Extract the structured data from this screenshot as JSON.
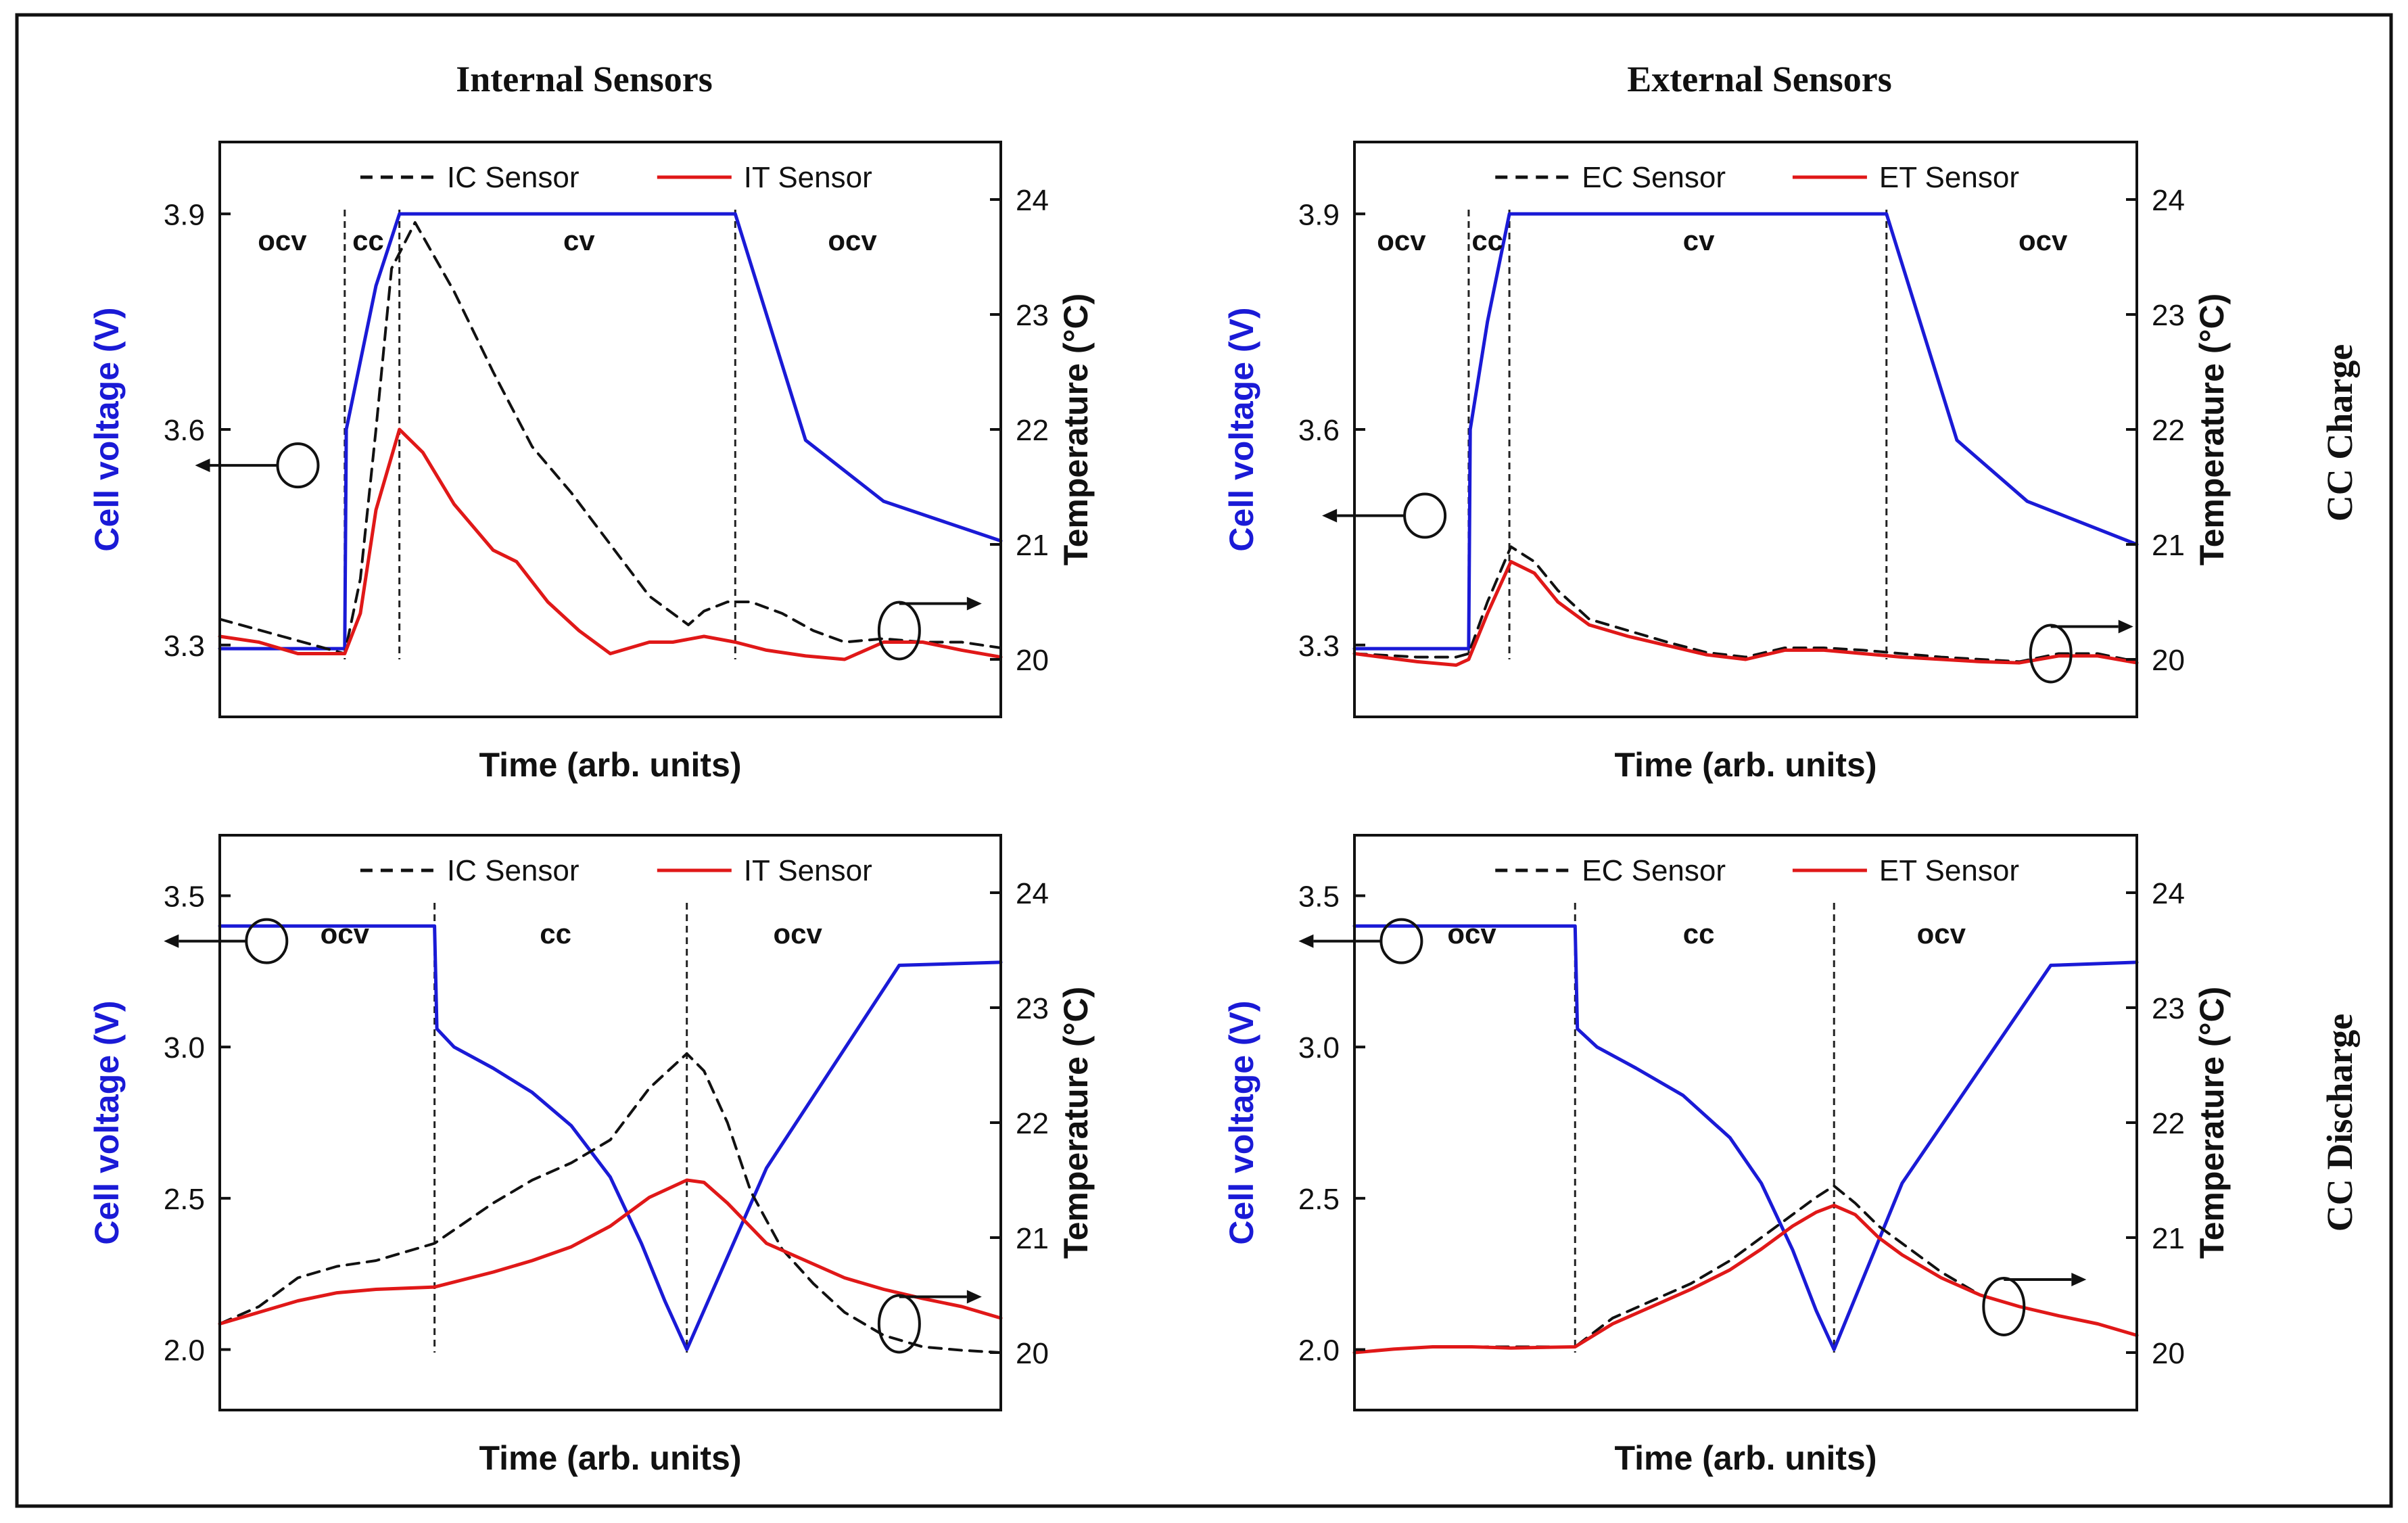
{
  "headings": {
    "left_column": "Internal Sensors",
    "right_column": "External Sensors",
    "top_row": "CC Charge",
    "bottom_row": "CC Discharge"
  },
  "colors": {
    "voltage": "#1a1ad6",
    "it_et": "#e01818",
    "ic_ec": "#111111",
    "ylabel_left": "#1a1ad6",
    "frame": "#111111"
  },
  "chart_data": [
    {
      "type": "line",
      "panel": "charge-internal",
      "xlabel": "Time (arb. units)",
      "ylabel": "Cell voltage (V)",
      "y2label": "Temperature (°C)",
      "x_range": [
        0,
        100
      ],
      "ylim": [
        3.2,
        4.0
      ],
      "y_ticks": [
        3.3,
        3.6,
        3.9
      ],
      "y_tick_labels": [
        "3.3",
        "3.6",
        "3.9"
      ],
      "y2lim": [
        19.5,
        24.5
      ],
      "y2_ticks": [
        20,
        21,
        22,
        23,
        24
      ],
      "y2_tick_labels": [
        "20",
        "21",
        "22",
        "23",
        "24"
      ],
      "legend": [
        {
          "label": "IC Sensor",
          "style": "dashed",
          "color": "#111111"
        },
        {
          "label": "IT Sensor",
          "style": "solid",
          "color": "#e01818"
        }
      ],
      "phases": [
        {
          "label": "ocv",
          "x": 8
        },
        {
          "label": "cc",
          "x": 19
        },
        {
          "label": "cv",
          "x": 46
        },
        {
          "label": "ocv",
          "x": 81
        }
      ],
      "phase_lines": [
        16,
        23,
        66
      ],
      "series": [
        {
          "name": "Cell voltage",
          "axis": "left",
          "color": "#1a1ad6",
          "dash": false,
          "x": [
            0,
            16,
            16.2,
            20,
            23,
            66,
            75,
            85,
            100
          ],
          "y": [
            3.295,
            3.295,
            3.6,
            3.8,
            3.9,
            3.9,
            3.585,
            3.5,
            3.445
          ]
        },
        {
          "name": "IC Sensor",
          "axis": "right",
          "color": "#111111",
          "dash": true,
          "x": [
            0,
            8,
            16,
            18,
            20,
            22,
            25,
            30,
            35,
            40,
            45,
            50,
            55,
            60,
            62,
            65,
            68,
            72,
            76,
            80,
            85,
            90,
            95,
            100
          ],
          "y": [
            20.35,
            20.2,
            20.05,
            20.7,
            22.0,
            23.4,
            23.8,
            23.2,
            22.5,
            21.85,
            21.45,
            21.0,
            20.55,
            20.3,
            20.42,
            20.5,
            20.5,
            20.4,
            20.25,
            20.15,
            20.18,
            20.15,
            20.15,
            20.1
          ]
        },
        {
          "name": "IT Sensor",
          "axis": "right",
          "color": "#e01818",
          "dash": false,
          "x": [
            0,
            5,
            10,
            16,
            18,
            20,
            23,
            26,
            30,
            35,
            38,
            42,
            46,
            50,
            55,
            58,
            62,
            66,
            70,
            75,
            80,
            85,
            90,
            95,
            100
          ],
          "y": [
            20.2,
            20.15,
            20.05,
            20.05,
            20.4,
            21.3,
            22.0,
            21.8,
            21.35,
            20.95,
            20.85,
            20.5,
            20.25,
            20.05,
            20.15,
            20.15,
            20.2,
            20.15,
            20.08,
            20.03,
            20.0,
            20.15,
            20.15,
            20.08,
            20.02
          ]
        }
      ]
    },
    {
      "type": "line",
      "panel": "charge-external",
      "xlabel": "Time (arb. units)",
      "ylabel": "Cell voltage (V)",
      "y2label": "Temperature (°C)",
      "x_range": [
        0,
        100
      ],
      "ylim": [
        3.2,
        4.0
      ],
      "y_ticks": [
        3.3,
        3.6,
        3.9
      ],
      "y_tick_labels": [
        "3.3",
        "3.6",
        "3.9"
      ],
      "y2lim": [
        19.5,
        24.5
      ],
      "y2_ticks": [
        20,
        21,
        22,
        23,
        24
      ],
      "y2_tick_labels": [
        "20",
        "21",
        "22",
        "23",
        "24"
      ],
      "legend": [
        {
          "label": "EC Sensor",
          "style": "dashed",
          "color": "#111111"
        },
        {
          "label": "ET Sensor",
          "style": "solid",
          "color": "#e01818"
        }
      ],
      "phases": [
        {
          "label": "ocv",
          "x": 6
        },
        {
          "label": "cc",
          "x": 17
        },
        {
          "label": "cv",
          "x": 44
        },
        {
          "label": "ocv",
          "x": 88
        }
      ],
      "phase_lines": [
        14.6,
        19.8,
        68
      ],
      "series": [
        {
          "name": "Cell voltage",
          "axis": "left",
          "color": "#1a1ad6",
          "dash": false,
          "x": [
            0,
            14.6,
            14.8,
            17,
            19.8,
            68,
            77,
            86,
            100
          ],
          "y": [
            3.295,
            3.295,
            3.6,
            3.75,
            3.9,
            3.9,
            3.585,
            3.5,
            3.44
          ]
        },
        {
          "name": "EC Sensor",
          "axis": "right",
          "color": "#111111",
          "dash": true,
          "x": [
            0,
            8,
            13,
            14.6,
            17,
            20,
            23,
            26,
            30,
            35,
            40,
            45,
            50,
            55,
            60,
            65,
            70,
            75,
            80,
            85,
            90,
            95,
            100
          ],
          "y": [
            20.05,
            20.02,
            20.02,
            20.05,
            20.5,
            20.98,
            20.85,
            20.6,
            20.35,
            20.25,
            20.15,
            20.06,
            20.02,
            20.1,
            20.1,
            20.08,
            20.05,
            20.02,
            20.0,
            19.98,
            20.05,
            20.05,
            19.98
          ]
        },
        {
          "name": "ET Sensor",
          "axis": "right",
          "color": "#e01818",
          "dash": false,
          "x": [
            0,
            8,
            13,
            14.6,
            17,
            20,
            23,
            26,
            30,
            35,
            40,
            45,
            50,
            55,
            60,
            65,
            70,
            75,
            80,
            85,
            90,
            95,
            100
          ],
          "y": [
            20.05,
            19.98,
            19.95,
            20.0,
            20.4,
            20.85,
            20.75,
            20.5,
            20.3,
            20.2,
            20.12,
            20.04,
            20.0,
            20.08,
            20.08,
            20.05,
            20.02,
            20.0,
            19.98,
            19.97,
            20.03,
            20.03,
            19.97
          ]
        }
      ]
    },
    {
      "type": "line",
      "panel": "discharge-internal",
      "xlabel": "Time (arb. units)",
      "ylabel": "Cell voltage (V)",
      "y2label": "Temperature (°C)",
      "x_range": [
        0,
        100
      ],
      "ylim": [
        1.8,
        3.7
      ],
      "y_ticks": [
        2.0,
        2.5,
        3.0,
        3.5
      ],
      "y_tick_labels": [
        "2.0",
        "2.5",
        "3.0",
        "3.5"
      ],
      "y2lim": [
        19.5,
        24.5
      ],
      "y2_ticks": [
        20,
        21,
        22,
        23,
        24
      ],
      "y2_tick_labels": [
        "20",
        "21",
        "22",
        "23",
        "24"
      ],
      "legend": [
        {
          "label": "IC Sensor",
          "style": "dashed",
          "color": "#111111"
        },
        {
          "label": "IT Sensor",
          "style": "solid",
          "color": "#e01818"
        }
      ],
      "phases": [
        {
          "label": "ocv",
          "x": 16
        },
        {
          "label": "cc",
          "x": 43
        },
        {
          "label": "ocv",
          "x": 74
        }
      ],
      "phase_lines": [
        27.5,
        59.8
      ],
      "series": [
        {
          "name": "Cell voltage",
          "axis": "left",
          "color": "#1a1ad6",
          "dash": false,
          "x": [
            0,
            27.5,
            27.8,
            30,
            35,
            40,
            45,
            50,
            54,
            57,
            59.8,
            70,
            87,
            100
          ],
          "y": [
            3.4,
            3.4,
            3.06,
            3.0,
            2.93,
            2.85,
            2.74,
            2.57,
            2.35,
            2.16,
            2.0,
            2.6,
            3.27,
            3.28
          ]
        },
        {
          "name": "IC Sensor",
          "axis": "right",
          "color": "#111111",
          "dash": true,
          "x": [
            0,
            5,
            10,
            15,
            20,
            27.5,
            35,
            40,
            45,
            50,
            55,
            59.8,
            62,
            65,
            68,
            72,
            76,
            80,
            85,
            90,
            95,
            100
          ],
          "y": [
            20.25,
            20.4,
            20.65,
            20.75,
            20.8,
            20.95,
            21.3,
            21.5,
            21.65,
            21.85,
            22.3,
            22.6,
            22.45,
            22.0,
            21.4,
            20.9,
            20.6,
            20.35,
            20.15,
            20.05,
            20.02,
            20.0
          ]
        },
        {
          "name": "IT Sensor",
          "axis": "right",
          "color": "#e01818",
          "dash": false,
          "x": [
            0,
            5,
            10,
            15,
            20,
            27.5,
            35,
            40,
            45,
            50,
            55,
            59.8,
            62,
            65,
            70,
            75,
            80,
            85,
            90,
            95,
            100
          ],
          "y": [
            20.25,
            20.35,
            20.45,
            20.52,
            20.55,
            20.57,
            20.7,
            20.8,
            20.92,
            21.1,
            21.35,
            21.5,
            21.48,
            21.3,
            20.95,
            20.8,
            20.65,
            20.55,
            20.47,
            20.4,
            20.3
          ]
        }
      ]
    },
    {
      "type": "line",
      "panel": "discharge-external",
      "xlabel": "Time (arb. units)",
      "ylabel": "Cell voltage (V)",
      "y2label": "Temperature (°C)",
      "x_range": [
        0,
        100
      ],
      "ylim": [
        1.8,
        3.7
      ],
      "y_ticks": [
        2.0,
        2.5,
        3.0,
        3.5
      ],
      "y_tick_labels": [
        "2.0",
        "2.5",
        "3.0",
        "3.5"
      ],
      "y2lim": [
        19.5,
        24.5
      ],
      "y2_ticks": [
        20,
        21,
        22,
        23,
        24
      ],
      "y2_tick_labels": [
        "20",
        "21",
        "22",
        "23",
        "24"
      ],
      "legend": [
        {
          "label": "EC Sensor",
          "style": "dashed",
          "color": "#111111"
        },
        {
          "label": "ET Sensor",
          "style": "solid",
          "color": "#e01818"
        }
      ],
      "phases": [
        {
          "label": "ocv",
          "x": 15
        },
        {
          "label": "cc",
          "x": 44
        },
        {
          "label": "ocv",
          "x": 75
        }
      ],
      "phase_lines": [
        28.2,
        61.3
      ],
      "series": [
        {
          "name": "Cell voltage",
          "axis": "left",
          "color": "#1a1ad6",
          "dash": false,
          "x": [
            0,
            28.2,
            28.5,
            31,
            36,
            42,
            48,
            52,
            56,
            59,
            61.3,
            70,
            89,
            100
          ],
          "y": [
            3.4,
            3.4,
            3.06,
            3.0,
            2.93,
            2.84,
            2.7,
            2.55,
            2.33,
            2.13,
            2.0,
            2.55,
            3.27,
            3.28
          ]
        },
        {
          "name": "EC Sensor",
          "axis": "right",
          "color": "#111111",
          "dash": true,
          "x": [
            0,
            5,
            10,
            15,
            20,
            28.2,
            33,
            38,
            43,
            48,
            52,
            56,
            59,
            61.3,
            64,
            67,
            70,
            75,
            80,
            85,
            90,
            95,
            100
          ],
          "y": [
            20.0,
            20.03,
            20.05,
            20.05,
            20.05,
            20.05,
            20.3,
            20.45,
            20.6,
            20.8,
            21.0,
            21.2,
            21.35,
            21.45,
            21.3,
            21.1,
            20.95,
            20.7,
            20.5,
            20.4,
            20.32,
            20.25,
            20.15
          ]
        },
        {
          "name": "ET Sensor",
          "axis": "right",
          "color": "#e01818",
          "dash": false,
          "x": [
            0,
            5,
            10,
            15,
            20,
            28.2,
            33,
            38,
            43,
            48,
            52,
            56,
            59,
            61.3,
            64,
            67,
            70,
            75,
            80,
            85,
            90,
            95,
            100
          ],
          "y": [
            20.0,
            20.03,
            20.05,
            20.05,
            20.04,
            20.05,
            20.25,
            20.4,
            20.55,
            20.72,
            20.9,
            21.1,
            21.22,
            21.28,
            21.2,
            21.0,
            20.85,
            20.65,
            20.5,
            20.4,
            20.32,
            20.25,
            20.15
          ]
        }
      ]
    }
  ]
}
